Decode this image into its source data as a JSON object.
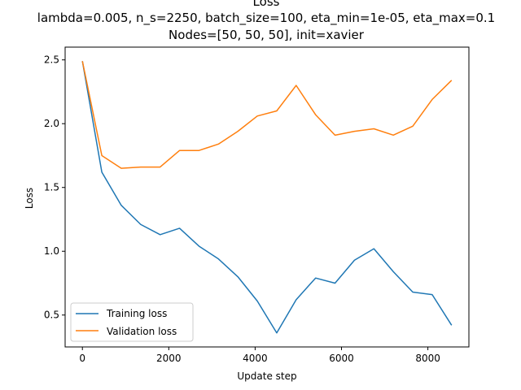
{
  "chart_data": {
    "type": "line",
    "title_lines": [
      "Loss",
      "lambda=0.005, n_s=2250, batch_size=100, eta_min=1e-05, eta_max=0.1",
      "Nodes=[50, 50, 50], init=xavier"
    ],
    "xlabel": "Update step",
    "ylabel": "Loss",
    "xlim": [
      -400,
      8950
    ],
    "ylim": [
      0.25,
      2.6
    ],
    "xticks": [
      0,
      2000,
      4000,
      6000,
      8000
    ],
    "yticks": [
      0.5,
      1.0,
      1.5,
      2.0,
      2.5
    ],
    "ytick_labels": [
      "0.5",
      "1.0",
      "1.5",
      "2.0",
      "2.5"
    ],
    "grid": false,
    "legend_position": "lower-left",
    "x": [
      0,
      450,
      900,
      1350,
      1800,
      2250,
      2700,
      3150,
      3600,
      4050,
      4500,
      4950,
      5400,
      5850,
      6300,
      6750,
      7200,
      7650,
      8100,
      8550
    ],
    "series": [
      {
        "name": "Training loss",
        "color": "#1f77b4",
        "values": [
          2.49,
          1.62,
          1.36,
          1.21,
          1.13,
          1.18,
          1.04,
          0.94,
          0.8,
          0.61,
          0.36,
          0.62,
          0.79,
          0.75,
          0.93,
          1.02,
          0.84,
          0.68,
          0.66,
          0.42
        ]
      },
      {
        "name": "Validation loss",
        "color": "#ff7f0e",
        "values": [
          2.49,
          1.75,
          1.65,
          1.66,
          1.66,
          1.79,
          1.79,
          1.84,
          1.94,
          2.06,
          2.1,
          2.3,
          2.07,
          1.91,
          1.94,
          1.96,
          1.91,
          1.98,
          2.19,
          2.34
        ]
      }
    ]
  }
}
